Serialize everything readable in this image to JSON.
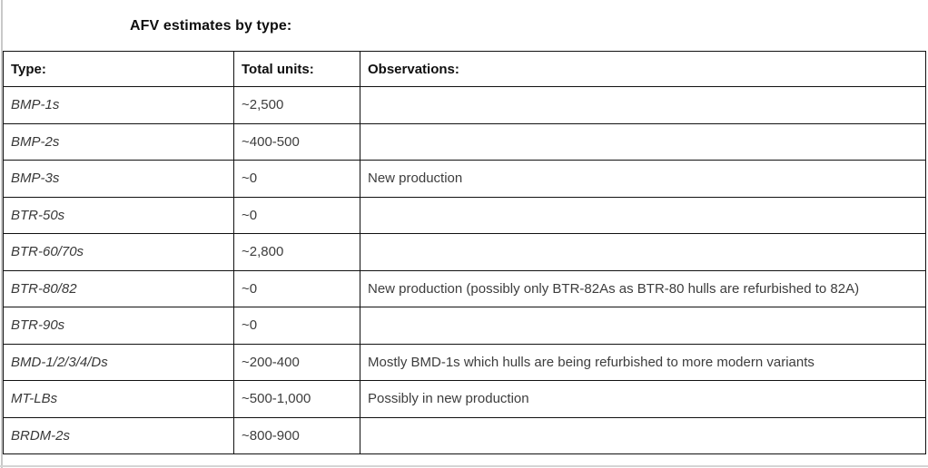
{
  "title": "AFV estimates by type:",
  "table": {
    "headers": {
      "type": "Type:",
      "units": "Total units:",
      "observations": "Observations:"
    },
    "rows": [
      {
        "type": "BMP-1s",
        "units": "~2,500",
        "obs": ""
      },
      {
        "type": "BMP-2s",
        "units": "~400-500",
        "obs": ""
      },
      {
        "type": "BMP-3s",
        "units": "~0",
        "obs": "New production"
      },
      {
        "type": "BTR-50s",
        "units": "~0",
        "obs": ""
      },
      {
        "type": "BTR-60/70s",
        "units": "~2,800",
        "obs": ""
      },
      {
        "type": "BTR-80/82",
        "units": "~0",
        "obs": "New production (possibly only BTR-82As as BTR-80 hulls are refurbished to 82A)"
      },
      {
        "type": "BTR-90s",
        "units": "~0",
        "obs": ""
      },
      {
        "type": "BMD-1/2/3/4/Ds",
        "units": "~200-400",
        "obs": "Mostly BMD-1s which hulls are being refurbished to more modern variants"
      },
      {
        "type": "MT-LBs",
        "units": "~500-1,000",
        "obs": "Possibly in new production"
      },
      {
        "type": "BRDM-2s",
        "units": "~800-900",
        "obs": ""
      }
    ]
  },
  "colors": {
    "border": "#111111",
    "header_text": "#0f0f0f",
    "body_text": "#3d3d3d",
    "outer_rule": "#c9c9c9"
  }
}
